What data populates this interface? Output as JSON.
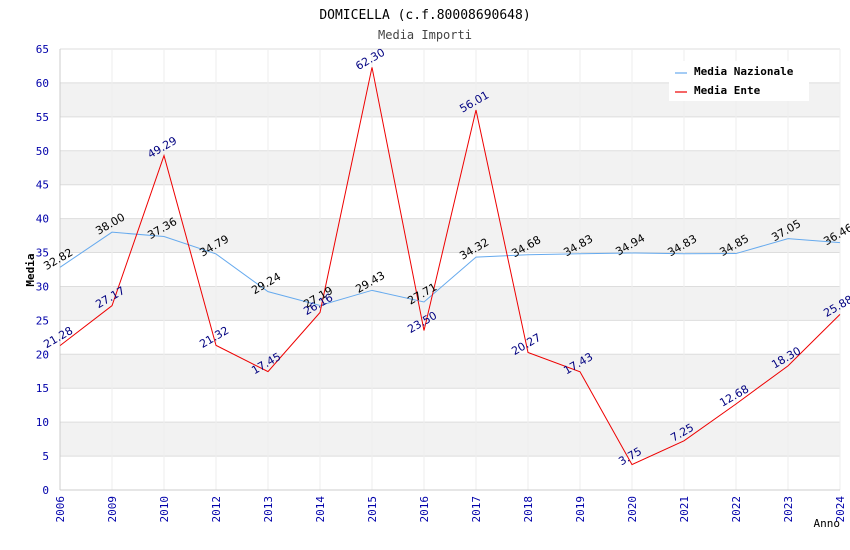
{
  "chart_data": {
    "type": "line",
    "title": "DOMICELLA (c.f.80008690648)",
    "subtitle": "Media Importi",
    "xlabel": "Anno",
    "ylabel": "Media",
    "ylim": [
      0,
      65
    ],
    "ytick_step": 5,
    "yticks": [
      "0",
      "5",
      "10",
      "15",
      "20",
      "25",
      "30",
      "35",
      "40",
      "45",
      "50",
      "55",
      "60",
      "65"
    ],
    "categories": [
      "2006",
      "2009",
      "2010",
      "2012",
      "2013",
      "2014",
      "2015",
      "2016",
      "2017",
      "2018",
      "2019",
      "2020",
      "2021",
      "2022",
      "2023",
      "2024"
    ],
    "grid": true,
    "legend_position": "top-right",
    "series": [
      {
        "name": "Media Nazionale",
        "color": "#66aaee",
        "label_color": "#000000",
        "values": [
          32.82,
          38.0,
          37.36,
          34.79,
          29.24,
          27.19,
          29.43,
          27.71,
          34.32,
          34.68,
          34.83,
          34.94,
          34.83,
          34.85,
          37.05,
          36.46
        ],
        "labels": [
          "32.82",
          "38.00",
          "37.36",
          "34.79",
          "29.24",
          "27.19",
          "29.43",
          "27.71",
          "34.32",
          "34.68",
          "34.83",
          "34.94",
          "34.83",
          "34.85",
          "37.05",
          "36.46"
        ]
      },
      {
        "name": "Media Ente",
        "color": "#ee0000",
        "label_color": "#000080",
        "values": [
          21.28,
          27.17,
          49.29,
          21.32,
          17.45,
          26.16,
          62.3,
          23.5,
          56.01,
          20.27,
          17.43,
          3.75,
          7.25,
          12.68,
          18.3,
          25.88
        ],
        "labels": [
          "21.28",
          "27.17",
          "49.29",
          "21.32",
          "17.45",
          "26.16",
          "62.30",
          "23.50",
          "56.01",
          "20.27",
          "17.43",
          "3.75",
          "7.25",
          "12.68",
          "18.30",
          "25.88"
        ]
      }
    ]
  }
}
